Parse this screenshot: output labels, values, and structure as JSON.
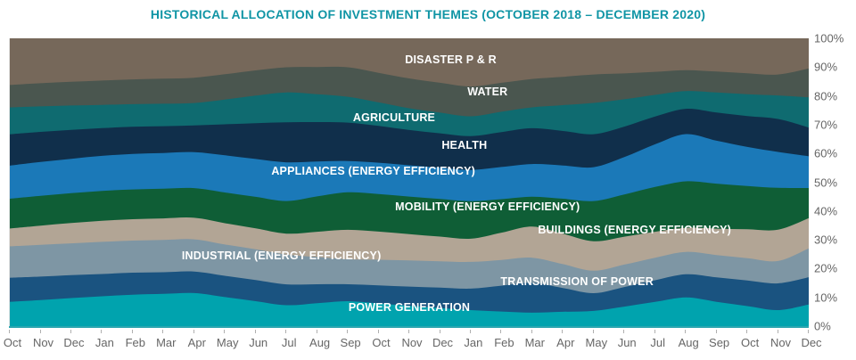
{
  "title": "HISTORICAL ALLOCATION OF INVESTMENT THEMES (OCTOBER 2018 – DECEMBER 2020)",
  "colors": {
    "title_text": "#1095A5",
    "axis_line": "#2BA6B0",
    "axis_text": "#666666",
    "background": "#FFFFFF",
    "series_label_text": "#FFFFFF"
  },
  "chart_data": {
    "type": "area",
    "stacked": true,
    "grid": false,
    "legend": "labels-inside-areas",
    "title": "HISTORICAL ALLOCATION OF INVESTMENT THEMES (OCTOBER 2018 – DECEMBER 2020)",
    "x_label_note": "monthly, October 2018 through December 2020",
    "x_labels": [
      "Oct",
      "Nov",
      "Dec",
      "Jan",
      "Feb",
      "Mar",
      "Apr",
      "May",
      "Jun",
      "Jul",
      "Aug",
      "Sep",
      "Oct",
      "Nov",
      "Dec",
      "Jan",
      "Feb",
      "Mar",
      "Apr",
      "May",
      "Jun",
      "Jul",
      "Aug",
      "Sep",
      "Oct",
      "Nov",
      "Dec"
    ],
    "y_ticks": [
      "0%",
      "10%",
      "20%",
      "30%",
      "40%",
      "50%",
      "60%",
      "70%",
      "80%",
      "90%",
      "100%"
    ],
    "ylim": [
      0,
      100
    ],
    "unit": "percent of allocation",
    "series_order": "bottom to top",
    "series": [
      {
        "id": "power-generation",
        "name": "POWER GENERATION",
        "color": "#00A3AE",
        "label_pos": {
          "x_pct": 50.0,
          "y_pct": 93.5
        },
        "values": [
          8.4,
          9.0,
          9.7,
          10.3,
          10.9,
          11.2,
          11.5,
          10.1,
          8.7,
          7.3,
          8.0,
          8.7,
          7.9,
          7.1,
          6.3,
          5.6,
          5.1,
          4.7,
          5.0,
          5.3,
          6.8,
          8.4,
          10.0,
          8.5,
          7.0,
          5.6,
          7.5
        ]
      },
      {
        "id": "transmission-of-power",
        "name": "TRANSMISSION OF POWER",
        "color": "#1A5380",
        "label_pos": {
          "x_pct": 71.0,
          "y_pct": 84.5
        },
        "values": [
          8.4,
          8.1,
          7.9,
          7.7,
          7.6,
          7.5,
          7.5,
          7.4,
          7.4,
          7.3,
          6.6,
          5.9,
          6.3,
          6.7,
          7.1,
          7.5,
          9.0,
          10.4,
          8.3,
          6.2,
          6.8,
          7.5,
          8.1,
          8.5,
          8.9,
          9.3,
          9.5
        ]
      },
      {
        "id": "industrial-energy-efficiency",
        "name": "INDUSTRIAL (ENERGY EFFICIENCY)",
        "color": "#7E96A4",
        "label_pos": {
          "x_pct": 34.0,
          "y_pct": 75.5
        },
        "values": [
          10.9,
          11.0,
          11.0,
          11.1,
          11.1,
          11.2,
          11.2,
          10.9,
          10.7,
          10.4,
          9.5,
          8.7,
          8.9,
          9.1,
          9.2,
          9.3,
          9.0,
          8.8,
          8.3,
          7.8,
          7.8,
          7.8,
          7.8,
          7.8,
          7.8,
          7.8,
          10.0
        ]
      },
      {
        "id": "buildings-energy-efficiency",
        "name": "BUILDINGS (ENERGY EFFICIENCY)",
        "color": "#B2A595",
        "label_pos": {
          "x_pct": 78.2,
          "y_pct": 66.6
        },
        "values": [
          6.2,
          6.6,
          7.0,
          7.3,
          7.4,
          7.5,
          7.5,
          7.4,
          7.3,
          7.3,
          8.8,
          10.3,
          9.8,
          9.2,
          8.6,
          8.1,
          9.5,
          10.9,
          10.6,
          10.3,
          9.7,
          9.0,
          8.4,
          9.2,
          10.1,
          10.9,
          10.5
        ]
      },
      {
        "id": "mobility-energy-efficiency",
        "name": "MOBILITY (ENERGY EFFICIENCY)",
        "color": "#0F5E36",
        "label_pos": {
          "x_pct": 59.8,
          "y_pct": 58.5
        },
        "values": [
          10.3,
          10.3,
          10.3,
          10.3,
          10.3,
          10.3,
          10.3,
          10.7,
          11.0,
          11.4,
          12.3,
          13.1,
          13.1,
          13.1,
          13.1,
          13.1,
          11.7,
          10.4,
          12.2,
          14.0,
          14.7,
          15.5,
          16.2,
          15.7,
          15.1,
          14.6,
          10.5
        ]
      },
      {
        "id": "appliances-energy-efficiency",
        "name": "APPLIANCES (ENERGY EFFICIENCY)",
        "color": "#1B79B8",
        "label_pos": {
          "x_pct": 45.5,
          "y_pct": 46.1
        },
        "values": [
          11.5,
          11.7,
          11.9,
          12.1,
          12.3,
          12.4,
          12.5,
          12.9,
          13.2,
          13.5,
          12.2,
          10.9,
          10.9,
          10.9,
          10.9,
          10.9,
          11.2,
          11.4,
          11.6,
          11.8,
          13.0,
          14.8,
          16.5,
          15.0,
          13.6,
          12.5,
          11.0
        ]
      },
      {
        "id": "health",
        "name": "HEALTH",
        "color": "#102F4B",
        "label_pos": {
          "x_pct": 56.9,
          "y_pct": 37.2
        },
        "values": [
          10.9,
          10.4,
          10.0,
          9.6,
          9.4,
          9.3,
          9.3,
          10.8,
          12.5,
          14.0,
          13.7,
          13.4,
          12.8,
          12.3,
          12.0,
          11.8,
          12.2,
          12.5,
          12.0,
          11.5,
          10.6,
          9.6,
          8.8,
          9.8,
          10.8,
          11.5,
          10.0
        ]
      },
      {
        "id": "agriculture",
        "name": "AGRICULTURE",
        "color": "#0F6B70",
        "label_pos": {
          "x_pct": 48.1,
          "y_pct": 27.6
        },
        "values": [
          9.3,
          8.8,
          8.4,
          8.0,
          7.8,
          7.8,
          7.8,
          8.6,
          9.6,
          10.4,
          9.7,
          9.0,
          8.2,
          7.6,
          7.2,
          6.9,
          7.1,
          7.3,
          9.0,
          10.9,
          9.5,
          7.5,
          6.2,
          7.0,
          7.6,
          8.2,
          10.5
        ]
      },
      {
        "id": "water",
        "name": "WATER",
        "color": "#4A564F",
        "label_pos": {
          "x_pct": 59.8,
          "y_pct": 18.6
        },
        "values": [
          7.8,
          8.0,
          8.2,
          8.4,
          8.6,
          8.7,
          8.8,
          8.8,
          8.8,
          8.8,
          9.5,
          10.3,
          10.3,
          10.4,
          10.4,
          10.4,
          10.1,
          9.9,
          9.9,
          9.9,
          9.0,
          8.0,
          7.3,
          7.3,
          7.3,
          7.3,
          10.0
        ]
      },
      {
        "id": "disaster-p-and-r",
        "name": "DISASTER P & R",
        "color": "#76685A",
        "label_pos": {
          "x_pct": 55.2,
          "y_pct": 7.4
        },
        "values": [
          16.2,
          15.5,
          15.0,
          14.6,
          14.2,
          14.0,
          13.7,
          12.5,
          11.2,
          10.1,
          10.0,
          10.1,
          12.0,
          14.0,
          15.5,
          16.8,
          15.5,
          14.2,
          13.4,
          12.6,
          12.2,
          11.6,
          11.1,
          11.6,
          12.2,
          12.6,
          10.5
        ]
      }
    ]
  }
}
